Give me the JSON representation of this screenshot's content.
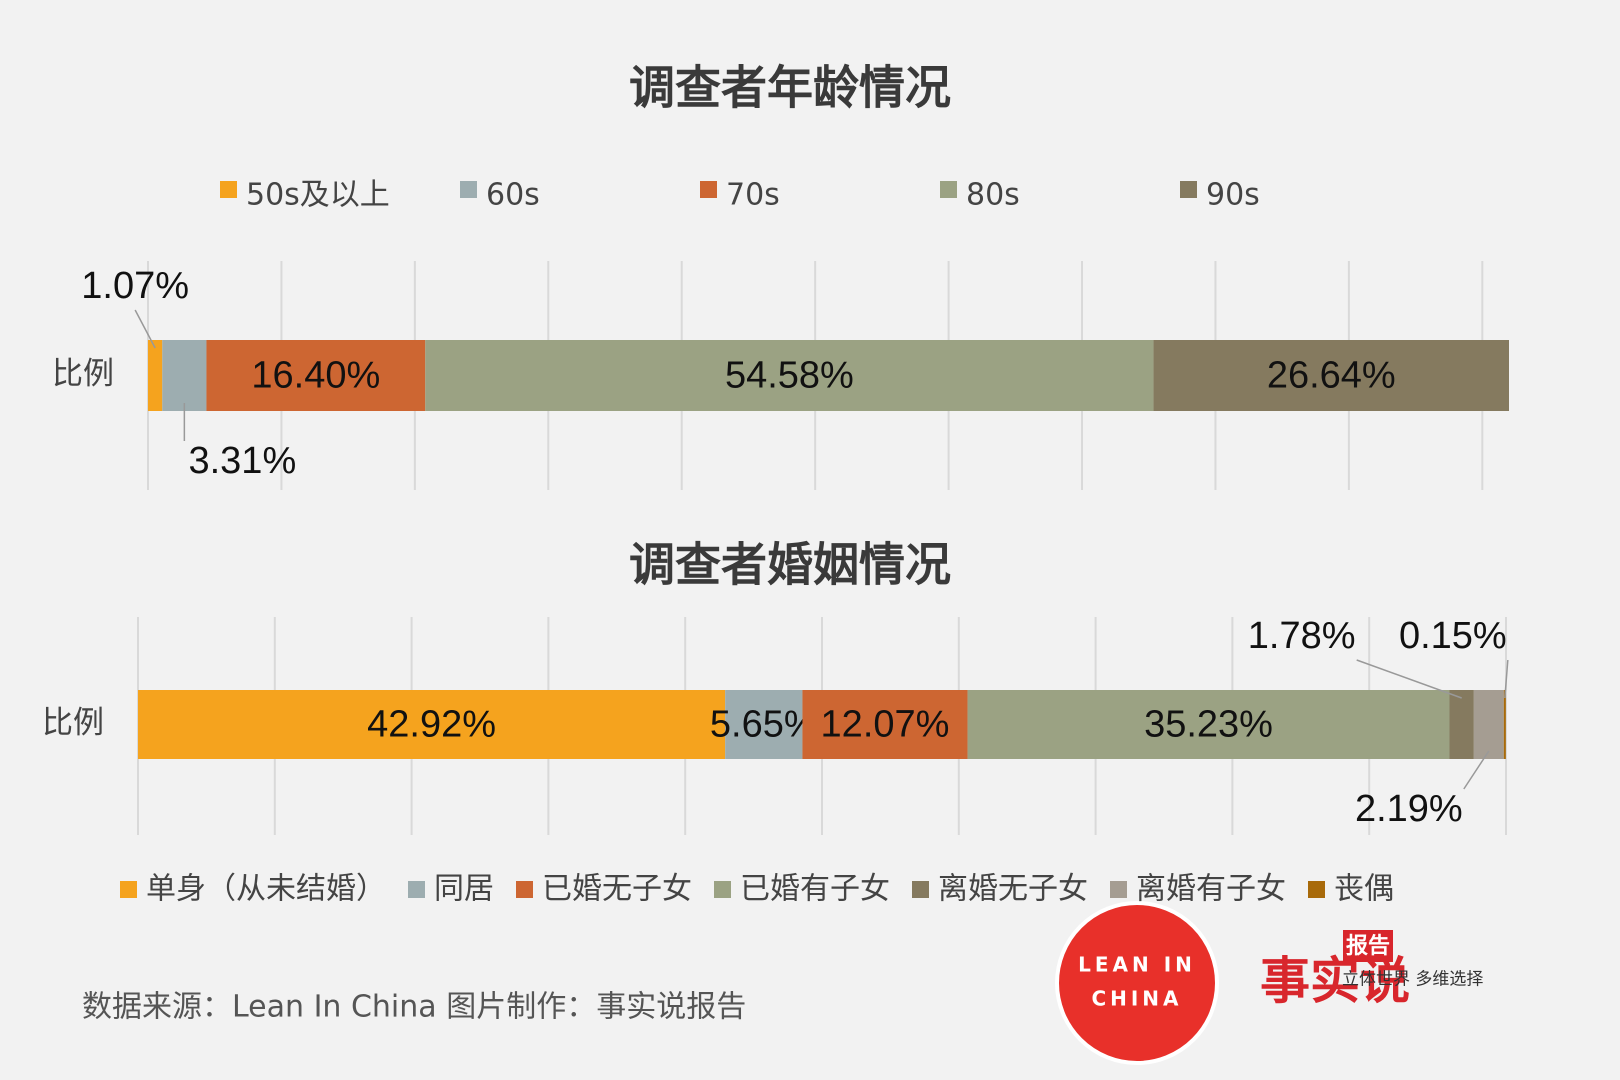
{
  "chart_data": [
    {
      "type": "stacked-bar",
      "orientation": "horizontal",
      "title": "调查者年龄情况",
      "categories": [
        "比例"
      ],
      "xlim": [
        0,
        102
      ],
      "xticks": [
        0,
        10,
        20,
        30,
        40,
        50,
        60,
        70,
        80,
        90,
        100
      ],
      "grid": true,
      "legend": "top",
      "series": [
        {
          "name": "50s及以上",
          "color": "#f5a31e",
          "values": [
            1.07
          ],
          "value_labels": [
            "1.07%"
          ]
        },
        {
          "name": "60s",
          "color": "#9dadb0",
          "values": [
            3.31
          ],
          "value_labels": [
            "3.31%"
          ]
        },
        {
          "name": "70s",
          "color": "#cd6632",
          "values": [
            16.4
          ],
          "value_labels": [
            "16.40%"
          ]
        },
        {
          "name": "80s",
          "color": "#9ba283",
          "values": [
            54.58
          ],
          "value_labels": [
            "54.58%"
          ]
        },
        {
          "name": "90s",
          "color": "#857a5f",
          "values": [
            26.64
          ],
          "value_labels": [
            "26.64%"
          ]
        }
      ]
    },
    {
      "type": "stacked-bar",
      "orientation": "horizontal",
      "title": "调查者婚姻情况",
      "categories": [
        "比例"
      ],
      "xlim": [
        0,
        100
      ],
      "xticks": [
        0,
        10,
        20,
        30,
        40,
        50,
        60,
        70,
        80,
        90,
        100
      ],
      "grid": true,
      "legend": "bottom",
      "series": [
        {
          "name": "单身（从未结婚）",
          "color": "#f5a31e",
          "values": [
            42.92
          ],
          "value_labels": [
            "42.92%"
          ]
        },
        {
          "name": "同居",
          "color": "#9dadb0",
          "values": [
            5.65
          ],
          "value_labels": [
            "5.65%"
          ]
        },
        {
          "name": "已婚无子女",
          "color": "#cd6632",
          "values": [
            12.07
          ],
          "value_labels": [
            "12.07%"
          ]
        },
        {
          "name": "已婚有子女",
          "color": "#9ba283",
          "values": [
            35.23
          ],
          "value_labels": [
            "35.23%"
          ]
        },
        {
          "name": "离婚无子女",
          "color": "#857a5f",
          "values": [
            1.78
          ],
          "value_labels": [
            "1.78%"
          ]
        },
        {
          "name": "离婚有子女",
          "color": "#a59d92",
          "values": [
            2.19
          ],
          "value_labels": [
            "2.19%"
          ]
        },
        {
          "name": "丧偶",
          "color": "#a86a0a",
          "values": [
            0.15
          ],
          "value_labels": [
            "0.15%"
          ]
        }
      ]
    }
  ],
  "source": "数据来源：Lean In China  图片制作：事实说报告",
  "logo": {
    "lean_in": "LEAN IN",
    "china": "CHINA",
    "brand": "事实说",
    "tag": "报告",
    "slogan": "立体世界 多维选择"
  }
}
